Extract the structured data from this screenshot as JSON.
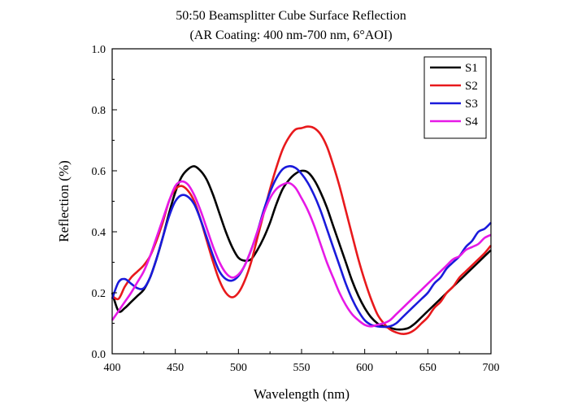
{
  "chart_data": {
    "type": "line",
    "title": "50:50 Beamsplitter Cube Surface Reflection",
    "subtitle": "(AR Coating: 400 nm-700 nm, 6°AOI)",
    "xlabel": "Wavelength (nm)",
    "ylabel": "Reflection (%)",
    "xlim": [
      400,
      700
    ],
    "ylim": [
      0,
      1
    ],
    "xticks": [
      "400",
      "450",
      "500",
      "550",
      "600",
      "650",
      "700"
    ],
    "yticks": [
      "0.0",
      "0.2",
      "0.4",
      "0.6",
      "0.8",
      "1.0"
    ],
    "grid": false,
    "legend_position": "top-right",
    "series": [
      {
        "name": "S1",
        "color": "#000000",
        "x": [
          400,
          405,
          410,
          415,
          420,
          425,
          430,
          435,
          440,
          445,
          450,
          455,
          460,
          465,
          470,
          475,
          480,
          485,
          490,
          495,
          500,
          505,
          510,
          515,
          520,
          525,
          530,
          535,
          540,
          545,
          550,
          555,
          560,
          565,
          570,
          575,
          580,
          585,
          590,
          595,
          600,
          605,
          610,
          615,
          620,
          625,
          630,
          635,
          640,
          645,
          650,
          655,
          660,
          665,
          670,
          675,
          680,
          685,
          690,
          695,
          700
        ],
        "y": [
          0.2,
          0.14,
          0.15,
          0.17,
          0.19,
          0.21,
          0.25,
          0.31,
          0.38,
          0.46,
          0.53,
          0.58,
          0.605,
          0.615,
          0.6,
          0.57,
          0.52,
          0.46,
          0.4,
          0.35,
          0.315,
          0.305,
          0.31,
          0.34,
          0.38,
          0.43,
          0.49,
          0.54,
          0.57,
          0.59,
          0.6,
          0.595,
          0.57,
          0.53,
          0.48,
          0.42,
          0.36,
          0.3,
          0.24,
          0.19,
          0.15,
          0.12,
          0.1,
          0.09,
          0.085,
          0.08,
          0.08,
          0.085,
          0.1,
          0.12,
          0.14,
          0.16,
          0.18,
          0.2,
          0.22,
          0.24,
          0.26,
          0.28,
          0.3,
          0.32,
          0.34
        ]
      },
      {
        "name": "S2",
        "color": "#e8191c",
        "x": [
          400,
          405,
          410,
          415,
          420,
          425,
          430,
          435,
          440,
          445,
          450,
          455,
          460,
          465,
          470,
          475,
          480,
          485,
          490,
          495,
          500,
          505,
          510,
          515,
          520,
          525,
          530,
          535,
          540,
          545,
          550,
          555,
          560,
          565,
          570,
          575,
          580,
          585,
          590,
          595,
          600,
          605,
          610,
          615,
          620,
          625,
          630,
          635,
          640,
          645,
          650,
          655,
          660,
          665,
          670,
          675,
          680,
          685,
          690,
          695,
          700
        ],
        "y": [
          0.19,
          0.18,
          0.22,
          0.25,
          0.27,
          0.29,
          0.32,
          0.37,
          0.43,
          0.5,
          0.54,
          0.55,
          0.535,
          0.5,
          0.44,
          0.37,
          0.3,
          0.24,
          0.2,
          0.185,
          0.2,
          0.24,
          0.3,
          0.38,
          0.46,
          0.54,
          0.61,
          0.67,
          0.71,
          0.735,
          0.74,
          0.745,
          0.74,
          0.72,
          0.68,
          0.62,
          0.55,
          0.47,
          0.39,
          0.31,
          0.24,
          0.18,
          0.13,
          0.1,
          0.08,
          0.07,
          0.065,
          0.068,
          0.08,
          0.1,
          0.12,
          0.15,
          0.17,
          0.2,
          0.22,
          0.25,
          0.27,
          0.29,
          0.31,
          0.33,
          0.355
        ]
      },
      {
        "name": "S3",
        "color": "#1a1adb",
        "x": [
          400,
          405,
          410,
          415,
          420,
          425,
          430,
          435,
          440,
          445,
          450,
          455,
          460,
          465,
          470,
          475,
          480,
          485,
          490,
          495,
          500,
          505,
          510,
          515,
          520,
          525,
          530,
          535,
          540,
          545,
          550,
          555,
          560,
          565,
          570,
          575,
          580,
          585,
          590,
          595,
          600,
          605,
          610,
          615,
          620,
          625,
          630,
          635,
          640,
          645,
          650,
          655,
          660,
          665,
          670,
          675,
          680,
          685,
          690,
          695,
          700
        ],
        "y": [
          0.18,
          0.235,
          0.245,
          0.23,
          0.215,
          0.215,
          0.25,
          0.31,
          0.38,
          0.45,
          0.5,
          0.52,
          0.515,
          0.49,
          0.44,
          0.38,
          0.32,
          0.27,
          0.245,
          0.24,
          0.255,
          0.29,
          0.34,
          0.4,
          0.47,
          0.53,
          0.575,
          0.605,
          0.615,
          0.61,
          0.59,
          0.56,
          0.52,
          0.47,
          0.41,
          0.35,
          0.29,
          0.23,
          0.18,
          0.14,
          0.11,
          0.095,
          0.09,
          0.088,
          0.09,
          0.1,
          0.12,
          0.14,
          0.16,
          0.18,
          0.2,
          0.23,
          0.25,
          0.28,
          0.3,
          0.32,
          0.35,
          0.37,
          0.4,
          0.41,
          0.43
        ]
      },
      {
        "name": "S4",
        "color": "#e619e6",
        "x": [
          400,
          405,
          410,
          415,
          420,
          425,
          430,
          435,
          440,
          445,
          450,
          455,
          460,
          465,
          470,
          475,
          480,
          485,
          490,
          495,
          500,
          505,
          510,
          515,
          520,
          525,
          530,
          535,
          540,
          545,
          550,
          555,
          560,
          565,
          570,
          575,
          580,
          585,
          590,
          595,
          600,
          605,
          610,
          615,
          620,
          625,
          630,
          635,
          640,
          645,
          650,
          655,
          660,
          665,
          670,
          675,
          680,
          685,
          690,
          695,
          700
        ],
        "y": [
          0.11,
          0.14,
          0.17,
          0.2,
          0.235,
          0.27,
          0.32,
          0.38,
          0.44,
          0.5,
          0.55,
          0.565,
          0.555,
          0.52,
          0.47,
          0.41,
          0.35,
          0.3,
          0.265,
          0.25,
          0.26,
          0.29,
          0.34,
          0.4,
          0.46,
          0.51,
          0.54,
          0.555,
          0.56,
          0.545,
          0.51,
          0.47,
          0.42,
          0.36,
          0.3,
          0.25,
          0.2,
          0.16,
          0.13,
          0.11,
          0.095,
          0.09,
          0.095,
          0.1,
          0.11,
          0.13,
          0.15,
          0.17,
          0.19,
          0.21,
          0.23,
          0.25,
          0.27,
          0.29,
          0.31,
          0.32,
          0.34,
          0.35,
          0.36,
          0.38,
          0.39
        ]
      }
    ]
  }
}
